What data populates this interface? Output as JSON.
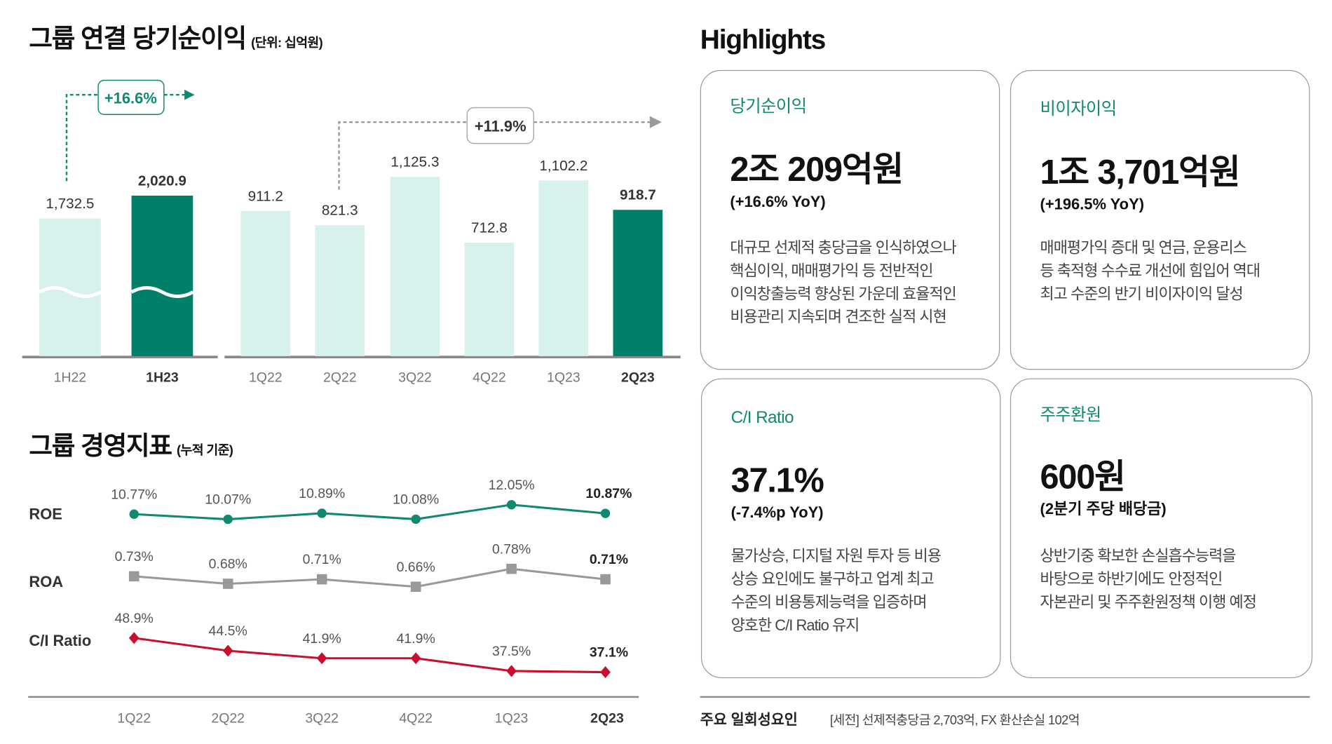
{
  "net_income": {
    "title": "그룹 연결 당기순이익",
    "unit": "(단위: 십억원)",
    "growth_half": "+16.6%",
    "growth_quarter": "+11.9%"
  },
  "indicators": {
    "title": "그룹 경영지표",
    "basis": "(누적 기준)"
  },
  "chart_data": [
    {
      "type": "bar",
      "title": "그룹 연결 당기순이익",
      "unit": "십억원",
      "groups": [
        {
          "categories": [
            "1H22",
            "1H23"
          ],
          "values": [
            1732.5,
            2020.9
          ],
          "labels": [
            "1,732.5",
            "2,020.9"
          ],
          "highlight": [
            false,
            true
          ],
          "broken_axis": true
        },
        {
          "categories": [
            "1Q22",
            "2Q22",
            "3Q22",
            "4Q22",
            "1Q23",
            "2Q23"
          ],
          "values": [
            911.2,
            821.3,
            1125.3,
            712.8,
            1102.2,
            918.7
          ],
          "labels": [
            "911.2",
            "821.3",
            "1,125.3",
            "712.8",
            "1,102.2",
            "918.7"
          ],
          "highlight": [
            false,
            false,
            false,
            false,
            false,
            true
          ]
        }
      ],
      "colors": {
        "base": "#d7f1ec",
        "highlight": "#008069"
      }
    },
    {
      "type": "line",
      "title": "그룹 경영지표",
      "categories": [
        "1Q22",
        "2Q22",
        "3Q22",
        "4Q22",
        "1Q23",
        "2Q23"
      ],
      "series": [
        {
          "name": "ROE",
          "values": [
            10.77,
            10.07,
            10.89,
            10.08,
            12.05,
            10.87
          ],
          "labels": [
            "10.77%",
            "10.07%",
            "10.89%",
            "10.08%",
            "12.05%",
            "10.87%"
          ],
          "color": "#0f8a70",
          "marker": "circle"
        },
        {
          "name": "ROA",
          "values": [
            0.73,
            0.68,
            0.71,
            0.66,
            0.78,
            0.71
          ],
          "labels": [
            "0.73%",
            "0.68%",
            "0.71%",
            "0.66%",
            "0.78%",
            "0.71%"
          ],
          "color": "#999999",
          "marker": "square"
        },
        {
          "name": "C/I Ratio",
          "values": [
            48.9,
            44.5,
            41.9,
            41.9,
            37.5,
            37.1
          ],
          "labels": [
            "48.9%",
            "44.5%",
            "41.9%",
            "41.9%",
            "37.5%",
            "37.1%"
          ],
          "color": "#c8102e",
          "marker": "diamond"
        }
      ]
    }
  ],
  "highlights": {
    "title": "Highlights",
    "cards": [
      {
        "title": "당기순이익",
        "value": "2조 209억원",
        "sub": "(+16.6% YoY)",
        "body": [
          "대규모 선제적 충당금을 인식하였으나",
          "핵심이익, 매매평가익 등 전반적인",
          "이익창출능력 향상된 가운데 효율적인",
          "비용관리 지속되며 견조한 실적 시현"
        ]
      },
      {
        "title": "비이자이익",
        "value": "1조 3,701억원",
        "sub": "(+196.5% YoY)",
        "body": [
          "매매평가익 증대 및 연금, 운용리스",
          "등 축적형 수수료 개선에 힘입어 역대",
          "최고 수준의 반기 비이자이익 달성"
        ]
      },
      {
        "title": "C/I Ratio",
        "value": "37.1%",
        "sub": "(-7.4%p YoY)",
        "body": [
          "물가상승, 디지털 자원 투자 등 비용",
          "상승 요인에도 불구하고 업계 최고",
          "수준의 비용통제능력을 입증하며",
          "양호한 C/I Ratio 유지"
        ]
      },
      {
        "title": "주주환원",
        "value": "600원",
        "sub": "(2분기 주당 배당금)",
        "body": [
          "상반기중 확보한 손실흡수능력을",
          "바탕으로 하반기에도 안정적인",
          "자본관리 및 주주환원정책 이행 예정"
        ]
      }
    ],
    "footer_label": "주요 일회성요인",
    "footer_text": "[세전]  선제적충당금 2,703억, FX 환산손실 102억"
  }
}
